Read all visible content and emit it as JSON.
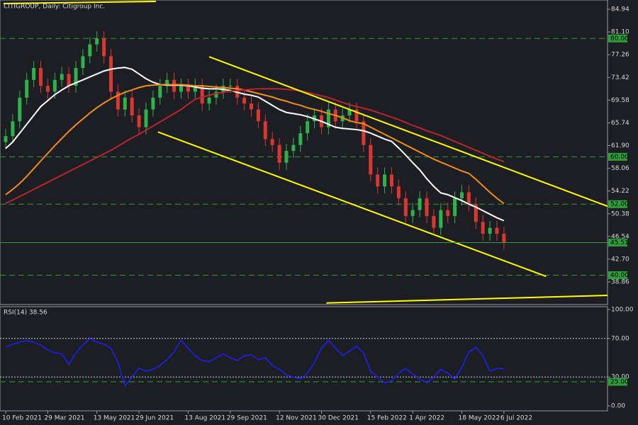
{
  "chart_data": [
    {
      "type": "candlestick",
      "title": "CITIGROUP, Daily:  Citigroup Inc.",
      "categories": [
        "10 Feb 2021",
        null,
        null,
        null,
        null,
        null,
        "29 Mar 2021",
        null,
        null,
        null,
        null,
        null,
        null,
        "13 May 2021",
        null,
        null,
        null,
        null,
        null,
        "29 Jun 2021",
        null,
        null,
        null,
        null,
        null,
        null,
        "13 Aug 2021",
        null,
        null,
        null,
        null,
        null,
        "29 Sep 2021",
        null,
        null,
        null,
        null,
        null,
        null,
        "12 Nov 2021",
        null,
        null,
        null,
        null,
        null,
        "30 Dec 2021",
        null,
        null,
        null,
        null,
        null,
        null,
        "15 Feb 2022",
        null,
        null,
        null,
        null,
        null,
        "1 Apr 2022",
        null,
        null,
        null,
        null,
        null,
        null,
        "18 May 2022",
        null,
        null,
        null,
        null,
        null,
        "6 Jul 2022"
      ],
      "open": [
        62.5,
        63.5,
        66,
        70,
        73,
        75,
        72,
        71,
        73,
        74,
        72,
        75,
        77,
        79,
        80,
        77,
        71,
        68,
        70,
        67,
        65,
        68,
        70,
        72,
        73,
        71,
        72,
        71,
        72,
        69,
        70,
        71,
        72,
        72,
        70,
        69,
        68,
        66,
        63,
        62,
        59,
        61,
        62,
        64,
        66,
        67,
        65,
        68,
        66,
        67,
        68,
        66,
        62,
        57,
        55,
        57,
        55,
        53,
        50,
        51,
        53,
        50,
        48,
        51,
        50,
        53,
        54,
        52,
        49,
        47,
        48,
        47
      ],
      "high": [
        64.7,
        67.2,
        71.2,
        74.2,
        76.2,
        76.2,
        73.2,
        74.2,
        75.2,
        75.2,
        76.2,
        78.2,
        80.2,
        81.2,
        81.2,
        78.2,
        72.2,
        71.2,
        71.2,
        68.2,
        69.2,
        71.2,
        73.2,
        74.2,
        74.2,
        73.2,
        73.2,
        73.2,
        73.2,
        71.2,
        72.2,
        73.2,
        73.2,
        73.2,
        71.2,
        70.2,
        69.2,
        67.2,
        64.2,
        63.2,
        62.2,
        63.2,
        65.2,
        67.2,
        68.2,
        68.2,
        69.2,
        69.2,
        68.2,
        69.2,
        69.2,
        67.2,
        63.2,
        58.2,
        58.2,
        58.2,
        56.2,
        54.2,
        52.2,
        54.2,
        54.2,
        51.2,
        52.2,
        52.2,
        54.2,
        55.2,
        55.2,
        53.2,
        50.2,
        49.2,
        49.2,
        48.2
      ],
      "low": [
        61.3,
        62.3,
        64.8,
        68.8,
        71.8,
        70.8,
        69.8,
        69.8,
        71.8,
        70.8,
        70.8,
        73.8,
        75.8,
        77.8,
        75.8,
        69.8,
        66.8,
        66.8,
        65.8,
        63.8,
        63.8,
        66.8,
        68.8,
        70.8,
        69.8,
        69.8,
        69.8,
        69.8,
        67.8,
        67.8,
        68.8,
        69.8,
        70.8,
        68.8,
        67.8,
        66.8,
        64.8,
        61.8,
        60.8,
        57.8,
        57.8,
        59.8,
        60.8,
        62.8,
        64.8,
        63.8,
        63.8,
        64.8,
        64.8,
        65.8,
        64.8,
        60.8,
        55.8,
        53.8,
        53.8,
        53.8,
        51.8,
        48.8,
        48.8,
        49.8,
        48.8,
        46.8,
        46.8,
        48.8,
        48.8,
        51.8,
        50.8,
        47.8,
        45.8,
        45.8,
        45.8,
        44.31
      ],
      "close": [
        63.5,
        66,
        70,
        73,
        75,
        72,
        71,
        73,
        74,
        72,
        75,
        77,
        79,
        80,
        77,
        71,
        68,
        70,
        67,
        65,
        68,
        70,
        72,
        73,
        71,
        72,
        71,
        72,
        69,
        70,
        71,
        72,
        72,
        70,
        69,
        68,
        66,
        63,
        62,
        59,
        61,
        62,
        64,
        66,
        67,
        65,
        68,
        66,
        67,
        68,
        66,
        62,
        57,
        55,
        57,
        55,
        53,
        50,
        51,
        53,
        50,
        48,
        51,
        50,
        53,
        54,
        52,
        49,
        47,
        48,
        47,
        45.51
      ],
      "up_color": "#2fb24a",
      "down_color": "#d9372f",
      "series": [
        {
          "color": "#ffffff",
          "values": [
            61.4,
            62.5,
            64,
            65.5,
            67,
            68.5,
            69.5,
            70.5,
            71.3,
            72,
            72.5,
            73,
            73.5,
            74,
            74.5,
            74.8,
            75,
            75.1,
            74.8,
            74,
            73.2,
            72.6,
            72.2,
            72.1,
            72.1,
            72.1,
            72,
            71.8,
            71.6,
            71.5,
            71.5,
            71.4,
            71.2,
            70.9,
            70.6,
            70.4,
            70.1,
            69.4,
            68.7,
            68,
            67.5,
            67.3,
            67.1,
            66.8,
            66.4,
            66,
            65.5,
            65,
            64.8,
            64.7,
            64.6,
            64.4,
            64,
            63.5,
            63,
            62.6,
            61.5,
            60.3,
            59,
            57.8,
            56.3,
            55,
            53.9,
            53.6,
            53.1,
            52.6,
            52,
            51.5,
            50.9,
            50.3,
            49.7,
            49.2
          ]
        },
        {
          "color": "#f28c1c",
          "values": [
            53.6,
            54.5,
            55.5,
            56.7,
            58,
            59.3,
            60.6,
            61.9,
            63.1,
            64.3,
            65.4,
            66.4,
            67.4,
            68.3,
            69.1,
            69.8,
            70.4,
            70.9,
            71.3,
            71.7,
            72,
            72.1,
            72.2,
            72.2,
            72.2,
            72.2,
            72.1,
            72,
            72,
            71.9,
            71.8,
            71.7,
            71.6,
            71.5,
            71.3,
            71,
            70.7,
            70.4,
            70.1,
            69.7,
            69.4,
            69,
            68.7,
            68.3,
            68,
            67.7,
            67.3,
            67,
            66.6,
            66.1,
            65.8,
            65.6,
            65,
            64.4,
            63.8,
            63.2,
            62.6,
            62,
            61.4,
            60.8,
            60.2,
            59.6,
            59.1,
            58.6,
            58.1,
            57.6,
            57.2,
            56.2,
            55.1,
            54,
            53,
            52.1
          ]
        },
        {
          "color": "#b8262b",
          "values": [
            52.1,
            52.7,
            53.3,
            53.9,
            54.5,
            55.1,
            55.7,
            56.3,
            56.9,
            57.5,
            58.1,
            58.7,
            59.3,
            59.9,
            60.5,
            61.1,
            61.8,
            62.5,
            63.2,
            63.8,
            64.5,
            65.2,
            65.9,
            66.6,
            67.3,
            68,
            68.9,
            69.7,
            70.1,
            70.4,
            70.7,
            70.9,
            71.1,
            71.2,
            71.3,
            71.4,
            71.5,
            71.5,
            71.5,
            71.5,
            71.4,
            71.3,
            71.1,
            70.9,
            70.6,
            70.3,
            70,
            69.6,
            69.2,
            68.8,
            68.5,
            68.2,
            67.9,
            67.5,
            67.1,
            66.7,
            66.3,
            65.8,
            65.3,
            64.9,
            64.4,
            64,
            63.6,
            63.1,
            62.6,
            62.1,
            61.6,
            61.1,
            60.6,
            60.1,
            59.6,
            59.2
          ]
        }
      ],
      "trendlines": [
        {
          "color": "#ffff00",
          "x": [
            29,
            86.3
          ],
          "y": [
            76.9,
            51.4
          ]
        },
        {
          "color": "#ffff00",
          "x": [
            21.7,
            77
          ],
          "y": [
            64.2,
            39.8
          ]
        },
        {
          "color": "#ffff00",
          "x": [
            45.7,
            86.3
          ],
          "y": [
            35.3,
            36.6
          ]
        },
        {
          "color": "#ffff00",
          "x": [
            -0.3,
            21.4
          ],
          "y": [
            85.9,
            86.26
          ]
        }
      ],
      "levels": [
        {
          "value": 80,
          "label": "80.00"
        },
        {
          "value": 60,
          "label": "60.00"
        },
        {
          "value": 52,
          "label": "52.00"
        },
        {
          "value": 40,
          "label": "40.00"
        }
      ],
      "level_color": "#2e9e3a",
      "price_line": 45.51,
      "ylim": [
        35.03,
        86.5
      ],
      "yticks": [
        84.94,
        {
          "value": 81.1,
          "label": "81.10"
        },
        77.26,
        73.42,
        69.58,
        65.74,
        {
          "value": 61.9,
          "label": "61.90"
        },
        58.06,
        54.22,
        50.38,
        46.54,
        {
          "value": 42.7,
          "label": "42.70"
        },
        38.86
      ]
    },
    {
      "type": "line",
      "title": "RSI(14) 38.56",
      "color": "#1f1fff",
      "values": [
        61,
        64,
        66,
        68,
        66,
        63,
        58,
        55,
        54,
        43,
        55,
        63,
        70,
        66,
        64,
        60,
        45,
        21,
        30,
        39,
        36,
        38,
        42,
        48,
        56,
        68,
        60,
        52,
        47,
        46,
        50,
        54,
        50,
        47,
        52,
        53,
        48,
        50,
        42,
        38,
        32,
        30,
        28,
        34,
        45,
        60,
        68,
        60,
        52,
        57,
        62,
        55,
        36,
        30,
        24,
        26,
        34,
        39,
        33,
        28,
        24,
        30,
        38,
        34,
        28,
        40,
        56,
        61,
        52,
        36,
        39,
        38.56
      ],
      "dotted_levels": [
        70,
        30
      ],
      "levels": [
        {
          "value": 25,
          "label": "25.00"
        }
      ],
      "level_color": "#2e9e3a",
      "ylim": [
        -5.1,
        102.9
      ],
      "yticks": [
        {
          "value": 100,
          "label": "100.00"
        },
        {
          "value": 70,
          "label": "70.00"
        },
        {
          "value": 30,
          "label": "30.00"
        },
        {
          "value": 0,
          "label": "0.00"
        }
      ]
    }
  ]
}
